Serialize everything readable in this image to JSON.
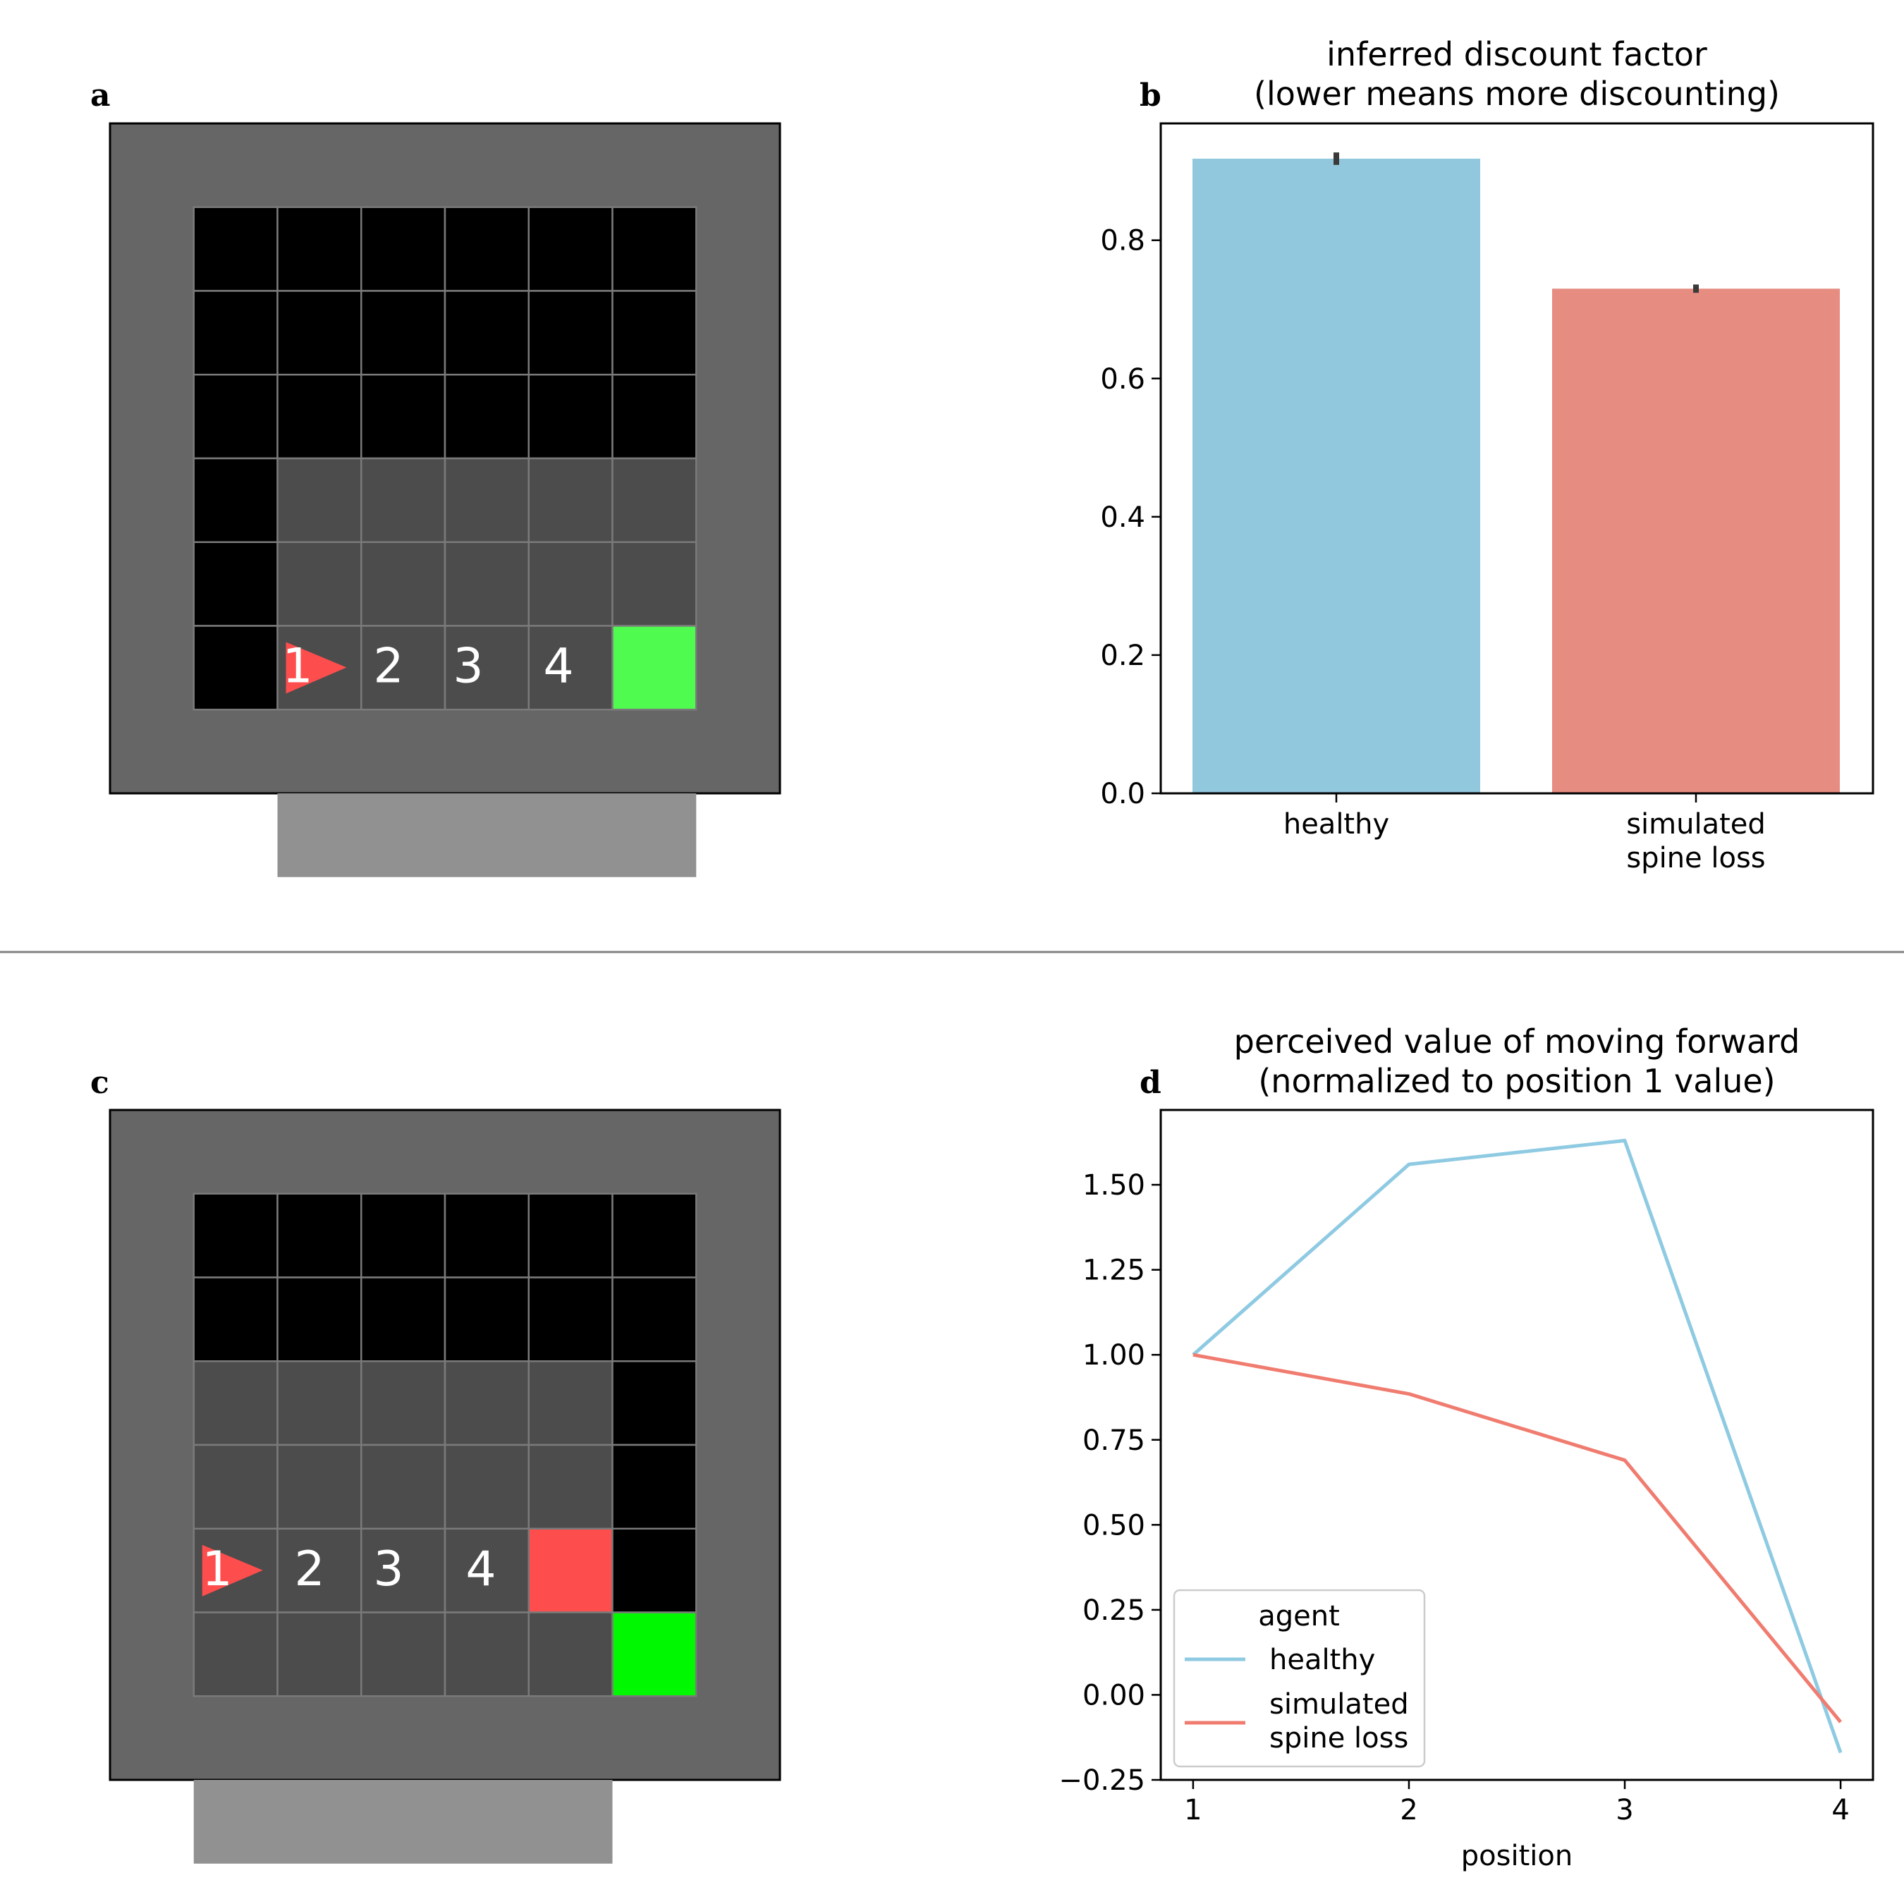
{
  "panels": {
    "a": {
      "letter": "a",
      "numbers": [
        "1",
        "2",
        "3",
        "4"
      ]
    },
    "b": {
      "letter": "b"
    },
    "c": {
      "letter": "c",
      "numbers": [
        "1",
        "2",
        "3",
        "4"
      ]
    },
    "d": {
      "letter": "d"
    }
  },
  "colors": {
    "healthy": "#8ECAE2",
    "spine_loss": "#F07C70",
    "bar_healthy": "#92C8DE",
    "bar_spine_loss": "#E68C81",
    "goal": "#4FFB4F",
    "goal_c": "#00F800",
    "lava": "#FD4D4D",
    "agent": "#FD4D4D",
    "wall": "#666666",
    "floor": "#4C4C4C",
    "unseen": "#000000",
    "highlight": "#919191"
  },
  "chart_data": [
    {
      "panel": "b",
      "type": "bar",
      "title": "inferred discount factor\n(lower means more discounting)",
      "categories": [
        "healthy",
        "simulated\nspine loss"
      ],
      "values": [
        0.918,
        0.73
      ],
      "errors": [
        0.009,
        0.006
      ],
      "ylim": [
        0,
        0.969
      ],
      "yticks": [
        0.0,
        0.2,
        0.4,
        0.6,
        0.8
      ],
      "ytick_labels": [
        "0.0",
        "0.2",
        "0.4",
        "0.6",
        "0.8"
      ],
      "xlabel": "",
      "ylabel": ""
    },
    {
      "panel": "d",
      "type": "line",
      "title": "perceived value of moving forward\n(normalized to position 1 value)",
      "x": [
        1,
        2,
        3,
        4
      ],
      "xticks": [
        "1",
        "2",
        "3",
        "4"
      ],
      "xlabel": "position",
      "ylabel": "",
      "xlim": [
        0.85,
        4.15
      ],
      "ylim": [
        -0.25,
        1.72
      ],
      "yticks": [
        -0.25,
        0.0,
        0.25,
        0.5,
        0.75,
        1.0,
        1.25,
        1.5
      ],
      "ytick_labels": [
        "−0.25",
        "0.00",
        "0.25",
        "0.50",
        "0.75",
        "1.00",
        "1.25",
        "1.50"
      ],
      "legend": {
        "title": "agent",
        "location": "lower-left"
      },
      "series": [
        {
          "name": "healthy",
          "values": [
            1.0,
            1.56,
            1.63,
            -0.17
          ]
        },
        {
          "name": "simulated\nspine loss",
          "values": [
            1.0,
            0.885,
            0.69,
            -0.08
          ]
        }
      ]
    }
  ]
}
